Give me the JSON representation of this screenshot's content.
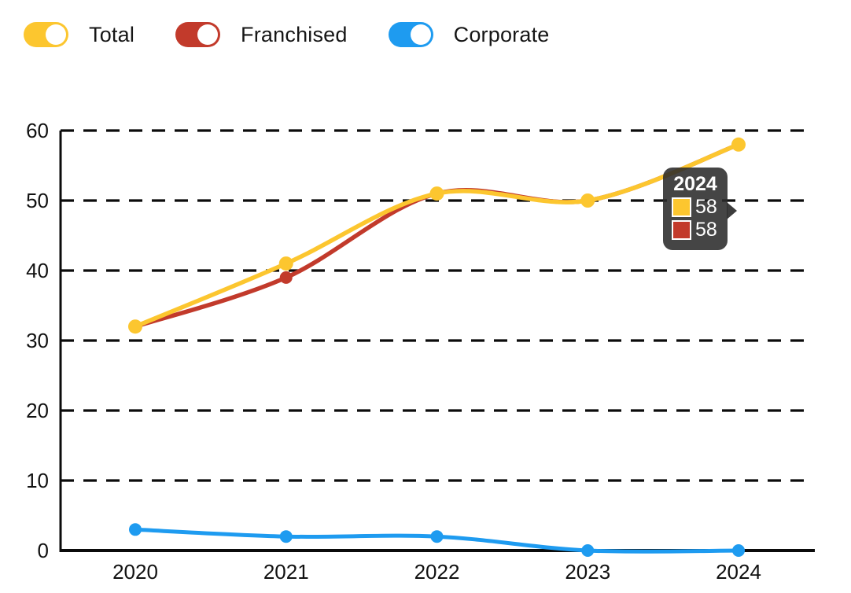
{
  "legend": {
    "items": [
      {
        "label": "Total",
        "color": "#FCC62F"
      },
      {
        "label": "Franchised",
        "color": "#C23A2B"
      },
      {
        "label": "Corporate",
        "color": "#1E9BF0"
      }
    ]
  },
  "chart_data": {
    "type": "line",
    "title": "",
    "xlabel": "",
    "ylabel": "",
    "categories": [
      "2020",
      "2021",
      "2022",
      "2023",
      "2024"
    ],
    "series": [
      {
        "name": "Total",
        "color": "#FCC62F",
        "values": [
          32,
          41,
          51,
          50,
          58
        ]
      },
      {
        "name": "Franchised",
        "color": "#C23A2B",
        "values": [
          32,
          39,
          51,
          50,
          58
        ]
      },
      {
        "name": "Corporate",
        "color": "#1E9BF0",
        "values": [
          3,
          2,
          2,
          0,
          0
        ]
      }
    ],
    "ylim": [
      0,
      60
    ],
    "yticks": [
      0,
      10,
      20,
      30,
      40,
      50,
      60
    ],
    "grid": "dashed-horizontal",
    "legend_position": "top-left",
    "axis_color": "#0b0b0b"
  },
  "tooltip": {
    "title": "2024",
    "entries": [
      {
        "series": "Total",
        "color": "#FCC62F",
        "value": "58"
      },
      {
        "series": "Franchised",
        "color": "#C23A2B",
        "value": "58"
      }
    ]
  }
}
